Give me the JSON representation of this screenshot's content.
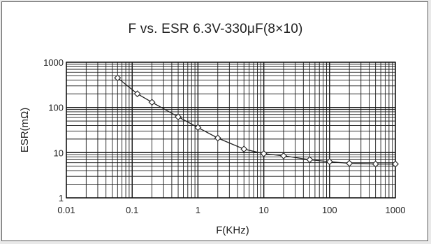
{
  "chart_data": {
    "type": "line",
    "title": "F vs. ESR 6.3V-330μF(8×10)",
    "xlabel": "F(KHz)",
    "ylabel": "ESR(mΩ)",
    "x_scale": "log",
    "y_scale": "log",
    "xlim": [
      0.01,
      1000
    ],
    "ylim": [
      1,
      1000
    ],
    "x_ticks": [
      "0.01",
      "0.1",
      "1",
      "10",
      "100",
      "1000"
    ],
    "y_ticks": [
      "1",
      "10",
      "100",
      "1000"
    ],
    "grid": true,
    "marker": "diamond",
    "series": [
      {
        "x": [
          0.06,
          0.12,
          0.2,
          0.5,
          1,
          2,
          5,
          10,
          20,
          50,
          100,
          200,
          500,
          1000
        ],
        "y": [
          450,
          200,
          130,
          62,
          36,
          21,
          12,
          9.5,
          8.5,
          7,
          6.3,
          5.8,
          5.6,
          5.6
        ]
      }
    ]
  }
}
